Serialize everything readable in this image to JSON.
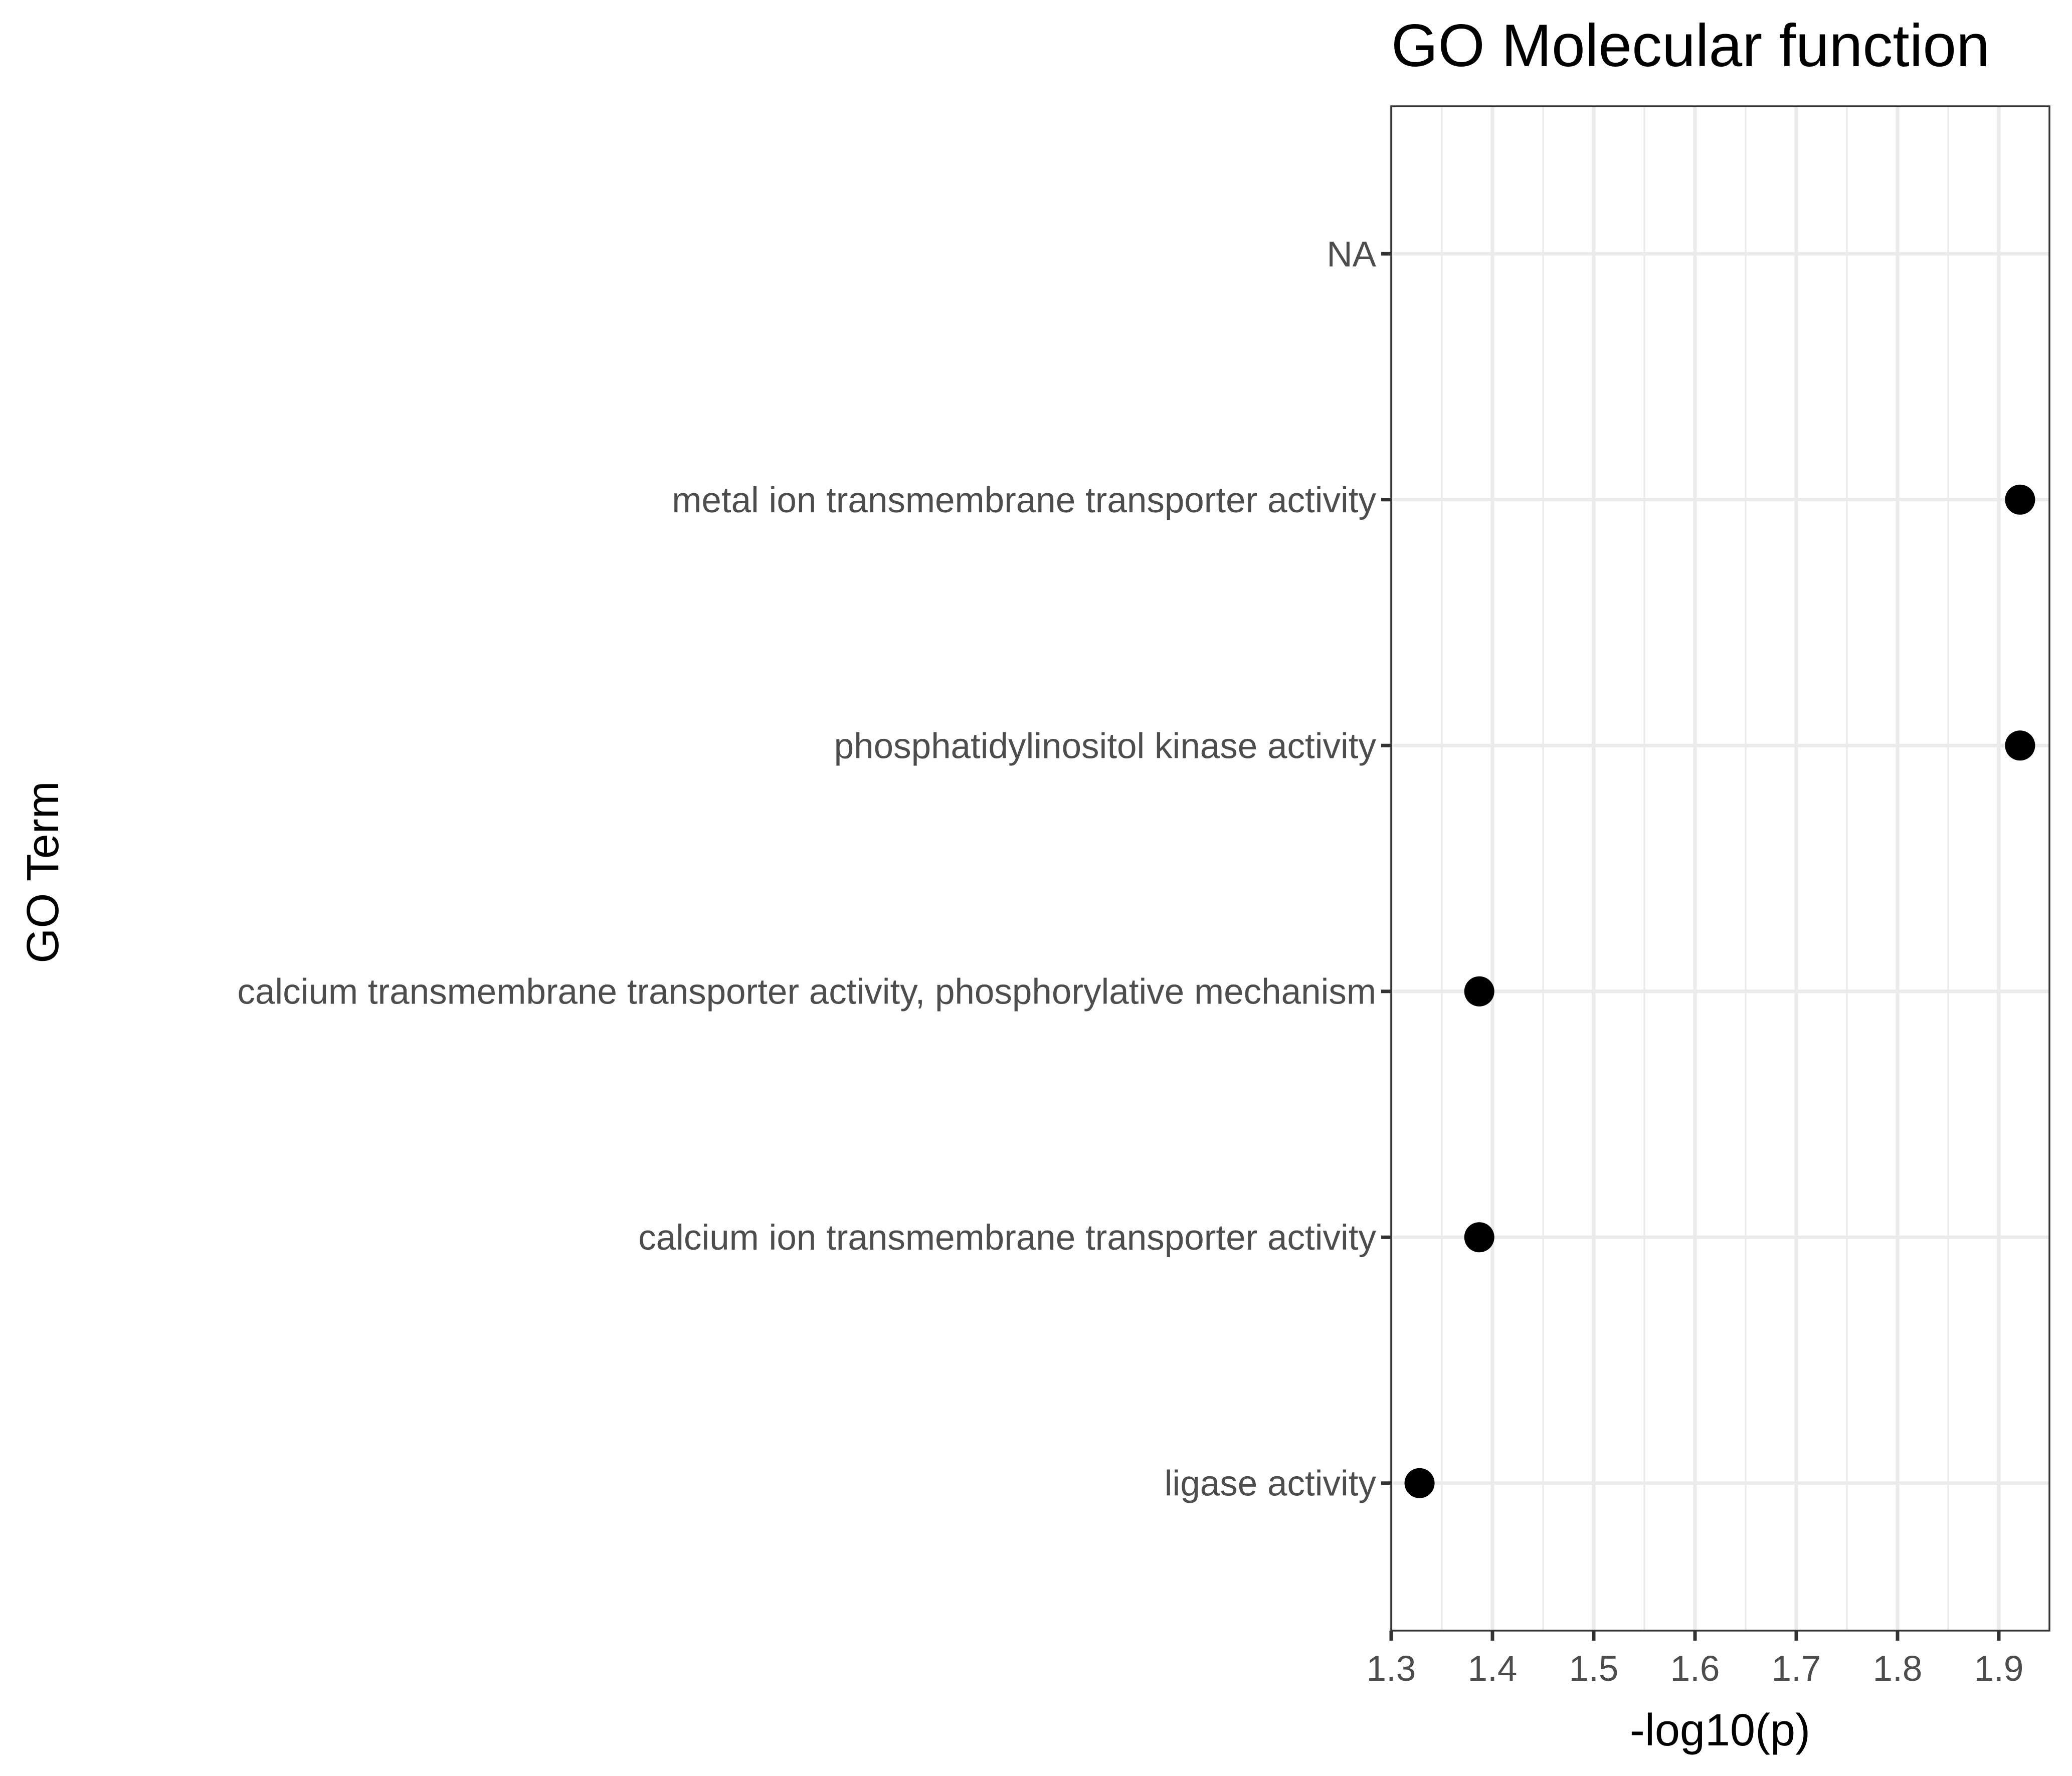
{
  "chart_data": {
    "type": "scatter",
    "title": "GO Molecular function",
    "xlabel": "-log10(p)",
    "ylabel": "GO Term",
    "xlim": [
      1.3,
      1.95
    ],
    "x_ticks": [
      1.3,
      1.4,
      1.5,
      1.6,
      1.7,
      1.8,
      1.9
    ],
    "x_tick_labels": [
      "1.3",
      "1.4",
      "1.5",
      "1.6",
      "1.7",
      "1.8",
      "1.9"
    ],
    "categories": [
      "NA",
      "metal ion transmembrane transporter activity",
      "phosphatidylinositol kinase activity",
      "calcium transmembrane transporter activity, phosphorylative mechanism",
      "calcium ion transmembrane transporter activity",
      "ligase activity"
    ],
    "values": [
      null,
      1.921,
      1.921,
      1.387,
      1.387,
      1.328
    ],
    "grid": true,
    "point_color": "#000000",
    "grid_color": "#ebebeb",
    "border_color": "#333333",
    "tick_label_color": "#4d4d4d"
  }
}
